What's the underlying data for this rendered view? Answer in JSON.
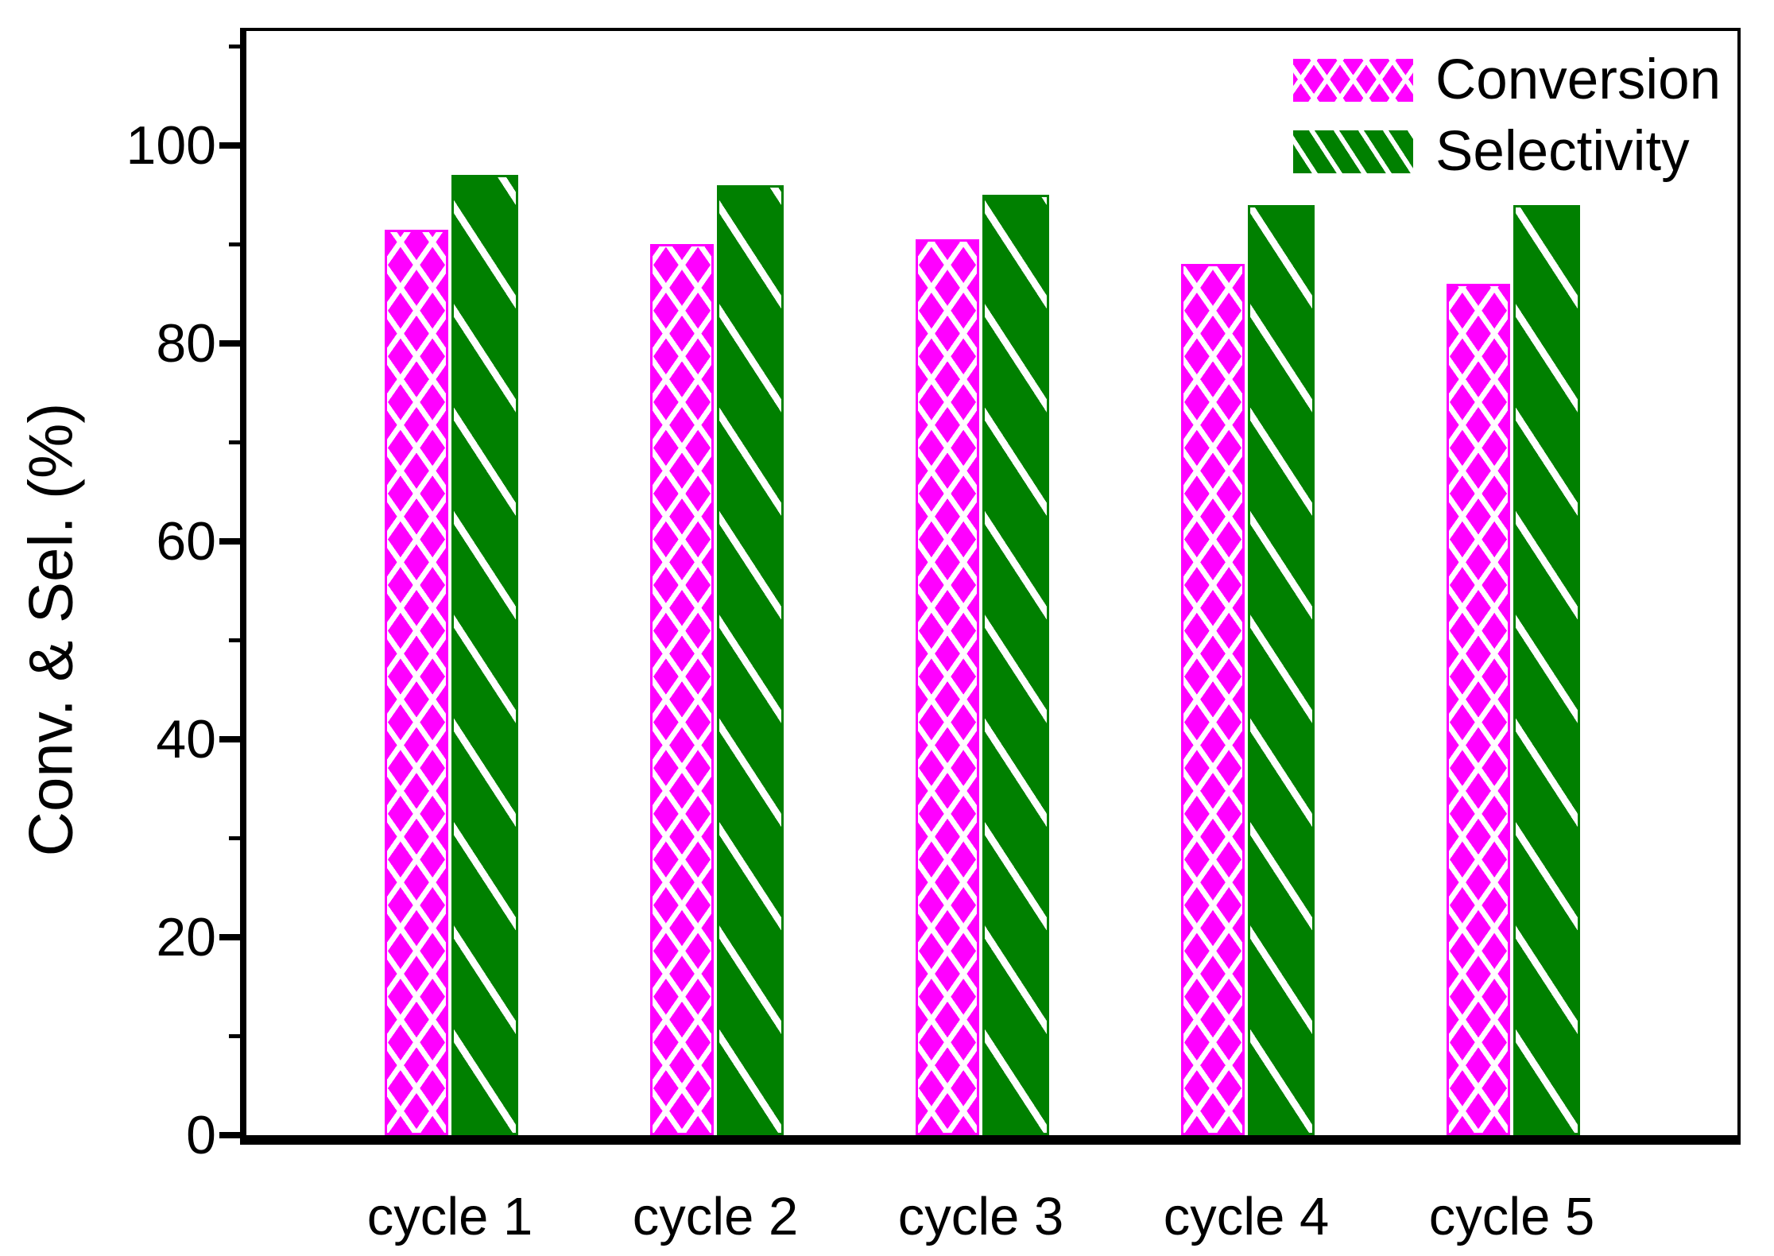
{
  "chart_data": {
    "type": "bar",
    "title": "",
    "categories": [
      "cycle 1",
      "cycle 2",
      "cycle 3",
      "cycle 4",
      "cycle 5"
    ],
    "series": [
      {
        "name": "Conversion",
        "color": "#FF00FF",
        "pattern": "crosshatch",
        "values": [
          91.5,
          90,
          90.5,
          88,
          86
        ]
      },
      {
        "name": "Selectivity",
        "color": "#008000",
        "pattern": "diagonal-stripes",
        "values": [
          97,
          96,
          95,
          94,
          94
        ]
      }
    ],
    "xlabel": "",
    "ylabel": "Conv. & Sel. (%)",
    "ylim": [
      0,
      111.6
    ],
    "yticks": [
      0,
      20,
      40,
      60,
      80,
      100
    ],
    "minor_yticks": [
      10,
      30,
      50,
      70,
      90,
      110
    ],
    "grid": false,
    "legend_position": "top-right-inside"
  }
}
